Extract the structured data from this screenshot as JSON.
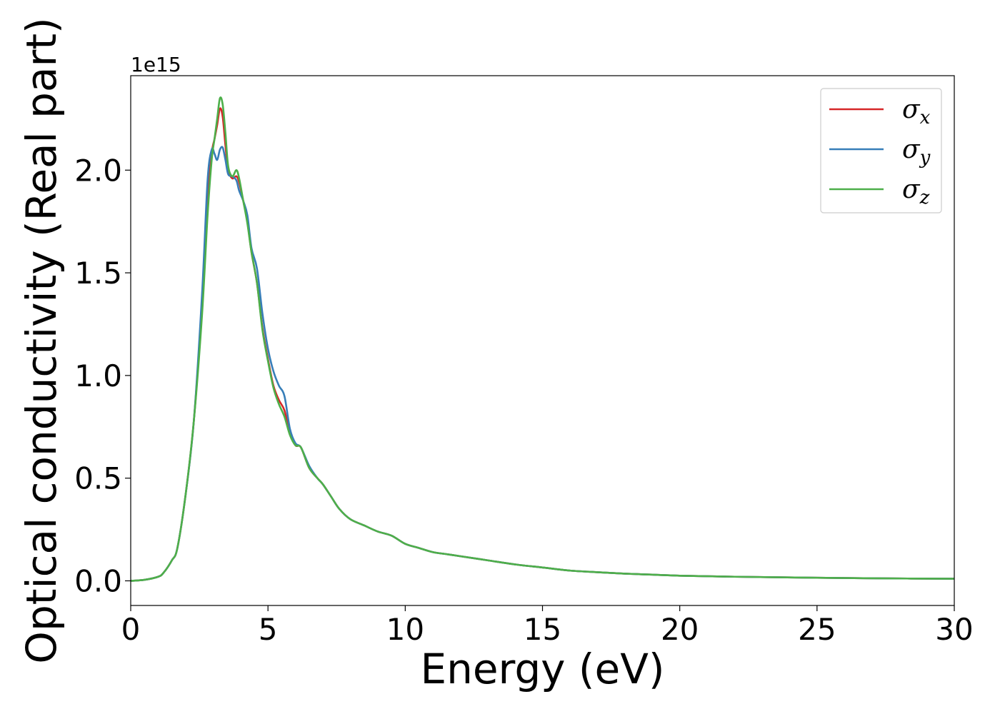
{
  "chart_data": {
    "type": "line",
    "xlabel": "Energy (eV)",
    "ylabel": "Optical conductivity (Real part)",
    "y_offset_label": "1e15",
    "xlim": [
      0,
      30
    ],
    "ylim": [
      -0.12,
      2.46
    ],
    "x_ticks": [
      0,
      5,
      10,
      15,
      20,
      25,
      30
    ],
    "x_tick_labels": [
      "0",
      "5",
      "10",
      "15",
      "20",
      "25",
      "30"
    ],
    "y_ticks": [
      0.0,
      0.5,
      1.0,
      1.5,
      2.0
    ],
    "y_tick_labels": [
      "0.0",
      "0.5",
      "1.0",
      "1.5",
      "2.0"
    ],
    "grid": false,
    "legend_position": "top-right",
    "series": [
      {
        "name": "σx",
        "symbol": "σ",
        "subscript": "x",
        "color": "#d62728",
        "x": [
          0,
          0.5,
          1.0,
          1.2,
          1.5,
          1.7,
          2.0,
          2.3,
          2.6,
          2.8,
          2.95,
          3.05,
          3.15,
          3.25,
          3.35,
          3.45,
          3.55,
          3.7,
          3.85,
          3.95,
          4.1,
          4.25,
          4.4,
          4.6,
          4.8,
          5.0,
          5.2,
          5.4,
          5.6,
          5.8,
          6.0,
          6.2,
          6.5,
          6.8,
          7.0,
          7.3,
          7.6,
          8.0,
          8.5,
          9.0,
          9.5,
          10.0,
          10.5,
          11.0,
          11.5,
          12.0,
          13.0,
          14.0,
          15.0,
          16.0,
          17.0,
          18.0,
          19.0,
          20.0,
          22.0,
          25.0,
          27.5,
          30.0
        ],
        "y": [
          0.0,
          0.005,
          0.02,
          0.04,
          0.1,
          0.16,
          0.42,
          0.78,
          1.35,
          1.85,
          2.08,
          2.15,
          2.22,
          2.3,
          2.26,
          2.12,
          2.0,
          1.96,
          1.97,
          1.94,
          1.85,
          1.75,
          1.6,
          1.45,
          1.23,
          1.08,
          0.95,
          0.88,
          0.83,
          0.72,
          0.66,
          0.65,
          0.55,
          0.5,
          0.47,
          0.41,
          0.35,
          0.3,
          0.27,
          0.24,
          0.22,
          0.18,
          0.16,
          0.14,
          0.13,
          0.12,
          0.1,
          0.08,
          0.065,
          0.05,
          0.042,
          0.035,
          0.03,
          0.025,
          0.02,
          0.015,
          0.012,
          0.01
        ]
      },
      {
        "name": "σy",
        "symbol": "σ",
        "subscript": "y",
        "color": "#377eb8",
        "x": [
          0,
          0.5,
          1.0,
          1.2,
          1.5,
          1.7,
          2.0,
          2.3,
          2.6,
          2.8,
          2.95,
          3.05,
          3.15,
          3.25,
          3.35,
          3.45,
          3.55,
          3.7,
          3.85,
          3.95,
          4.1,
          4.25,
          4.4,
          4.6,
          4.8,
          5.0,
          5.2,
          5.4,
          5.6,
          5.8,
          6.0,
          6.2,
          6.5,
          6.8,
          7.0,
          7.3,
          7.6,
          8.0,
          8.5,
          9.0,
          9.5,
          10.0,
          10.5,
          11.0,
          11.5,
          12.0,
          13.0,
          14.0,
          15.0,
          16.0,
          17.0,
          18.0,
          19.0,
          20.0,
          22.0,
          25.0,
          27.5,
          30.0
        ],
        "y": [
          0.0,
          0.005,
          0.02,
          0.04,
          0.1,
          0.16,
          0.42,
          0.78,
          1.4,
          1.95,
          2.1,
          2.08,
          2.05,
          2.1,
          2.11,
          2.05,
          1.98,
          1.97,
          1.95,
          1.9,
          1.85,
          1.78,
          1.62,
          1.52,
          1.3,
          1.13,
          1.02,
          0.95,
          0.9,
          0.74,
          0.67,
          0.65,
          0.56,
          0.5,
          0.47,
          0.41,
          0.35,
          0.3,
          0.27,
          0.24,
          0.22,
          0.18,
          0.16,
          0.14,
          0.13,
          0.12,
          0.1,
          0.08,
          0.065,
          0.05,
          0.042,
          0.035,
          0.03,
          0.025,
          0.02,
          0.015,
          0.012,
          0.01
        ]
      },
      {
        "name": "σz",
        "symbol": "σ",
        "subscript": "z",
        "color": "#4daf4a",
        "x": [
          0,
          0.5,
          1.0,
          1.2,
          1.5,
          1.7,
          2.0,
          2.3,
          2.6,
          2.8,
          2.95,
          3.05,
          3.15,
          3.25,
          3.35,
          3.45,
          3.55,
          3.7,
          3.85,
          3.95,
          4.1,
          4.25,
          4.4,
          4.6,
          4.8,
          5.0,
          5.2,
          5.4,
          5.6,
          5.8,
          6.0,
          6.2,
          6.5,
          6.8,
          7.0,
          7.3,
          7.6,
          8.0,
          8.5,
          9.0,
          9.5,
          10.0,
          10.5,
          11.0,
          11.5,
          12.0,
          13.0,
          14.0,
          15.0,
          16.0,
          17.0,
          18.0,
          19.0,
          20.0,
          22.0,
          25.0,
          27.5,
          30.0
        ],
        "y": [
          0.0,
          0.005,
          0.02,
          0.04,
          0.1,
          0.16,
          0.42,
          0.78,
          1.3,
          1.78,
          2.05,
          2.15,
          2.25,
          2.35,
          2.32,
          2.18,
          2.02,
          1.97,
          2.0,
          1.96,
          1.85,
          1.74,
          1.6,
          1.45,
          1.22,
          1.07,
          0.94,
          0.86,
          0.8,
          0.71,
          0.66,
          0.65,
          0.55,
          0.5,
          0.47,
          0.41,
          0.35,
          0.3,
          0.27,
          0.24,
          0.22,
          0.18,
          0.16,
          0.14,
          0.13,
          0.12,
          0.1,
          0.08,
          0.065,
          0.05,
          0.042,
          0.035,
          0.03,
          0.025,
          0.02,
          0.015,
          0.012,
          0.01
        ]
      }
    ]
  }
}
